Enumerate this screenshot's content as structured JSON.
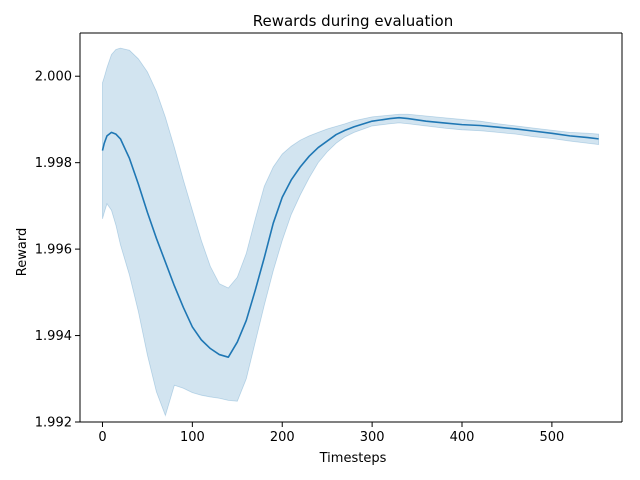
{
  "chart_data": {
    "type": "line",
    "title": "Rewards during evaluation",
    "xlabel": "Timesteps",
    "ylabel": "Reward",
    "xlim": [
      -25,
      578
    ],
    "ylim": [
      1.992,
      2.001
    ],
    "xticks": [
      0,
      100,
      200,
      300,
      400,
      500
    ],
    "yticks": [
      1.992,
      1.994,
      1.996,
      1.998,
      2.0
    ],
    "xtick_labels": [
      "0",
      "100",
      "200",
      "300",
      "400",
      "500"
    ],
    "ytick_labels": [
      "1.992",
      "1.994",
      "1.996",
      "1.998",
      "2.000"
    ],
    "grid": false,
    "colors": {
      "line": "#1f77b4",
      "band": "#1f77b4",
      "band_opacity": 0.2,
      "axes": "#000000"
    },
    "series": [
      {
        "x": [
          0,
          2,
          5,
          10,
          15,
          20,
          30,
          40,
          50,
          60,
          70,
          80,
          90,
          100,
          110,
          120,
          130,
          140,
          150,
          160,
          170,
          180,
          190,
          200,
          210,
          220,
          230,
          240,
          250,
          260,
          270,
          280,
          300,
          320,
          330,
          340,
          360,
          380,
          400,
          420,
          440,
          460,
          480,
          500,
          520,
          540,
          552
        ],
        "y": [
          1.99828,
          1.99845,
          1.99862,
          1.9987,
          1.99866,
          1.99855,
          1.9981,
          1.9975,
          1.99685,
          1.99625,
          1.9957,
          1.99515,
          1.99465,
          1.9942,
          1.9939,
          1.9937,
          1.99356,
          1.9935,
          1.99385,
          1.99435,
          1.99505,
          1.9958,
          1.9966,
          1.9972,
          1.9976,
          1.9979,
          1.99815,
          1.99835,
          1.9985,
          1.99865,
          1.99875,
          1.99883,
          1.99896,
          1.99902,
          1.99904,
          1.99902,
          1.99896,
          1.99892,
          1.99888,
          1.99886,
          1.99882,
          1.99878,
          1.99873,
          1.99868,
          1.99862,
          1.99858,
          1.99855
        ],
        "y_upper": [
          1.99985,
          1.99998,
          2.0002,
          2.0005,
          2.00062,
          2.00065,
          2.0006,
          2.0004,
          2.0001,
          1.99965,
          1.99905,
          1.99835,
          1.9976,
          1.9969,
          1.9962,
          1.9956,
          1.9952,
          1.9951,
          1.99535,
          1.9959,
          1.9967,
          1.99745,
          1.9979,
          1.9982,
          1.99838,
          1.99852,
          1.99862,
          1.9987,
          1.99878,
          1.99884,
          1.9989,
          1.99897,
          1.99906,
          1.9991,
          1.99912,
          1.99912,
          1.99908,
          1.99904,
          1.999,
          1.99896,
          1.9989,
          1.99885,
          1.9988,
          1.99875,
          1.9987,
          1.99868,
          1.99866
        ],
        "y_lower": [
          1.9967,
          1.99685,
          1.99705,
          1.9969,
          1.99655,
          1.9961,
          1.9954,
          1.99455,
          1.99355,
          1.9927,
          1.99215,
          1.99285,
          1.99278,
          1.99268,
          1.99262,
          1.99258,
          1.99255,
          1.9925,
          1.99248,
          1.993,
          1.99385,
          1.9947,
          1.9955,
          1.9962,
          1.9968,
          1.99725,
          1.99765,
          1.998,
          1.99825,
          1.99845,
          1.9986,
          1.9987,
          1.99885,
          1.9989,
          1.99892,
          1.9989,
          1.99885,
          1.9988,
          1.99876,
          1.99874,
          1.9987,
          1.99866,
          1.9986,
          1.99856,
          1.9985,
          1.99845,
          1.99842
        ]
      }
    ]
  }
}
